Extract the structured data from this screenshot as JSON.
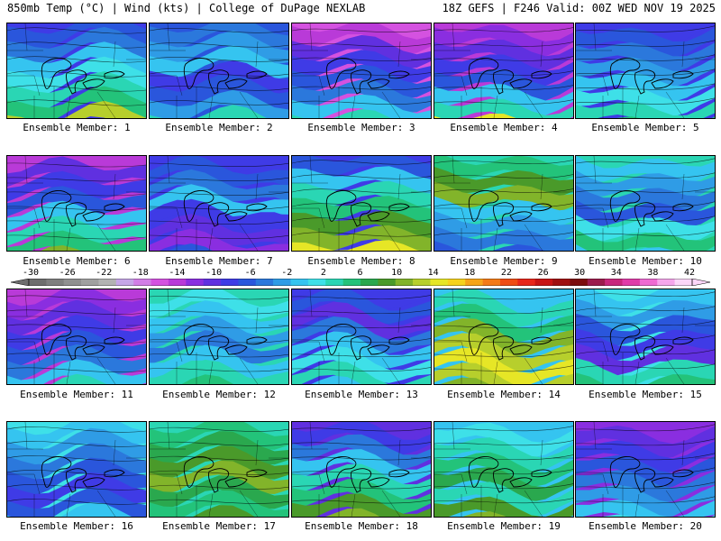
{
  "header": {
    "left": "850mb Temp (°C) | Wind (kts) | College of DuPage NEXLAB",
    "right": "18Z GEFS | F246 Valid: 00Z WED NOV 19 2025"
  },
  "colorbar": {
    "ticks": [
      "-30",
      "-26",
      "-22",
      "-18",
      "-14",
      "-10",
      "-6",
      "-2",
      "2",
      "6",
      "10",
      "14",
      "18",
      "22",
      "26",
      "30",
      "34",
      "38",
      "42"
    ],
    "colors": [
      "#6e6e6e",
      "#7f7f7f",
      "#909090",
      "#a0a0a0",
      "#b3b3b3",
      "#c6a6e8",
      "#d27ee6",
      "#d452e0",
      "#b93ad8",
      "#8a2ee0",
      "#6030e0",
      "#3f3be6",
      "#2a56dc",
      "#2b78dc",
      "#2f9ce6",
      "#35c4f0",
      "#3ee0e8",
      "#2ad6b4",
      "#23c37a",
      "#2aa84e",
      "#4a9a2a",
      "#82b42a",
      "#b7cf2c",
      "#e6e626",
      "#f6d21c",
      "#f6a418",
      "#f47a16",
      "#ef4c14",
      "#e8261a",
      "#c81414",
      "#a01010",
      "#7c0c0c",
      "#9c1c4c",
      "#c8287c",
      "#e03ca8",
      "#ee6ad2",
      "#f6a6ec",
      "#fcd6f8"
    ]
  },
  "members": [
    {
      "label": "Ensemble Member: 1",
      "palette": [
        "#3f3be6",
        "#2a56dc",
        "#2b78dc",
        "#35c4f0",
        "#3ee0e8",
        "#2ad6b4",
        "#23c37a",
        "#b7cf2c"
      ]
    },
    {
      "label": "Ensemble Member: 2",
      "palette": [
        "#2a56dc",
        "#2b78dc",
        "#2f9ce6",
        "#35c4f0",
        "#3f3be6",
        "#2a56dc",
        "#2f9ce6",
        "#2ad6b4"
      ]
    },
    {
      "label": "Ensemble Member: 3",
      "palette": [
        "#d452e0",
        "#b93ad8",
        "#6030e0",
        "#3f3be6",
        "#2a56dc",
        "#2b78dc",
        "#35c4f0",
        "#2ad6b4"
      ]
    },
    {
      "label": "Ensemble Member: 4",
      "palette": [
        "#b93ad8",
        "#8a2ee0",
        "#6030e0",
        "#3f3be6",
        "#2a56dc",
        "#35c4f0",
        "#2ad6b4",
        "#e6e626"
      ]
    },
    {
      "label": "Ensemble Member: 5",
      "palette": [
        "#3f3be6",
        "#2a56dc",
        "#2b78dc",
        "#2f9ce6",
        "#35c4f0",
        "#3ee0e8",
        "#2ad6b4",
        "#23c37a"
      ]
    },
    {
      "label": "Ensemble Member: 6",
      "palette": [
        "#b93ad8",
        "#6030e0",
        "#3f3be6",
        "#2a56dc",
        "#35c4f0",
        "#2ad6b4",
        "#23c37a",
        "#82b42a"
      ]
    },
    {
      "label": "Ensemble Member: 7",
      "palette": [
        "#3f3be6",
        "#2a56dc",
        "#2b78dc",
        "#35c4f0",
        "#3f3be6",
        "#6030e0",
        "#8a2ee0",
        "#2a56dc"
      ]
    },
    {
      "label": "Ensemble Member: 8",
      "palette": [
        "#3f3be6",
        "#2a56dc",
        "#35c4f0",
        "#2ad6b4",
        "#23c37a",
        "#4a9a2a",
        "#82b42a",
        "#e6e626"
      ]
    },
    {
      "label": "Ensemble Member: 9",
      "palette": [
        "#2ad6b4",
        "#23c37a",
        "#4a9a2a",
        "#82b42a",
        "#35c4f0",
        "#2f9ce6",
        "#2b78dc",
        "#2a56dc"
      ]
    },
    {
      "label": "Ensemble Member: 10",
      "palette": [
        "#2ad6b4",
        "#35c4f0",
        "#2f9ce6",
        "#2b78dc",
        "#2a56dc",
        "#3ee0e8",
        "#23c37a",
        "#35c4f0"
      ]
    },
    {
      "label": "Ensemble Member: 11",
      "palette": [
        "#b93ad8",
        "#8a2ee0",
        "#6030e0",
        "#3f3be6",
        "#2a56dc",
        "#2b78dc",
        "#35c4f0",
        "#2ad6b4"
      ]
    },
    {
      "label": "Ensemble Member: 12",
      "palette": [
        "#2ad6b4",
        "#3ee0e8",
        "#35c4f0",
        "#2f9ce6",
        "#2b78dc",
        "#35c4f0",
        "#2ad6b4",
        "#23c37a"
      ]
    },
    {
      "label": "Ensemble Member: 13",
      "palette": [
        "#3f3be6",
        "#2a56dc",
        "#6030e0",
        "#2b78dc",
        "#35c4f0",
        "#3ee0e8",
        "#2ad6b4",
        "#35c4f0"
      ]
    },
    {
      "label": "Ensemble Member: 14",
      "palette": [
        "#35c4f0",
        "#2ad6b4",
        "#23c37a",
        "#82b42a",
        "#b7cf2c",
        "#e6e626",
        "#b7cf2c",
        "#82b42a"
      ]
    },
    {
      "label": "Ensemble Member: 15",
      "palette": [
        "#3ee0e8",
        "#35c4f0",
        "#2f9ce6",
        "#2a56dc",
        "#3f3be6",
        "#6030e0",
        "#2ad6b4",
        "#23c37a"
      ]
    },
    {
      "label": "Ensemble Member: 16",
      "palette": [
        "#3ee0e8",
        "#35c4f0",
        "#2f9ce6",
        "#2b78dc",
        "#2a56dc",
        "#3f3be6",
        "#2a56dc",
        "#35c4f0"
      ]
    },
    {
      "label": "Ensemble Member: 17",
      "palette": [
        "#2ad6b4",
        "#23c37a",
        "#2aa84e",
        "#4a9a2a",
        "#82b42a",
        "#2aa84e",
        "#23c37a",
        "#4a9a2a"
      ]
    },
    {
      "label": "Ensemble Member: 18",
      "palette": [
        "#6030e0",
        "#3f3be6",
        "#2b78dc",
        "#35c4f0",
        "#2ad6b4",
        "#23c37a",
        "#4a9a2a",
        "#82b42a"
      ]
    },
    {
      "label": "Ensemble Member: 19",
      "palette": [
        "#35c4f0",
        "#3ee0e8",
        "#2ad6b4",
        "#23c37a",
        "#2aa84e",
        "#2ad6b4",
        "#4a9a2a",
        "#82b42a"
      ]
    },
    {
      "label": "Ensemble Member: 20",
      "palette": [
        "#8a2ee0",
        "#6030e0",
        "#3f3be6",
        "#2a56dc",
        "#2b78dc",
        "#2f9ce6",
        "#35c4f0",
        "#3ee0e8"
      ]
    }
  ]
}
